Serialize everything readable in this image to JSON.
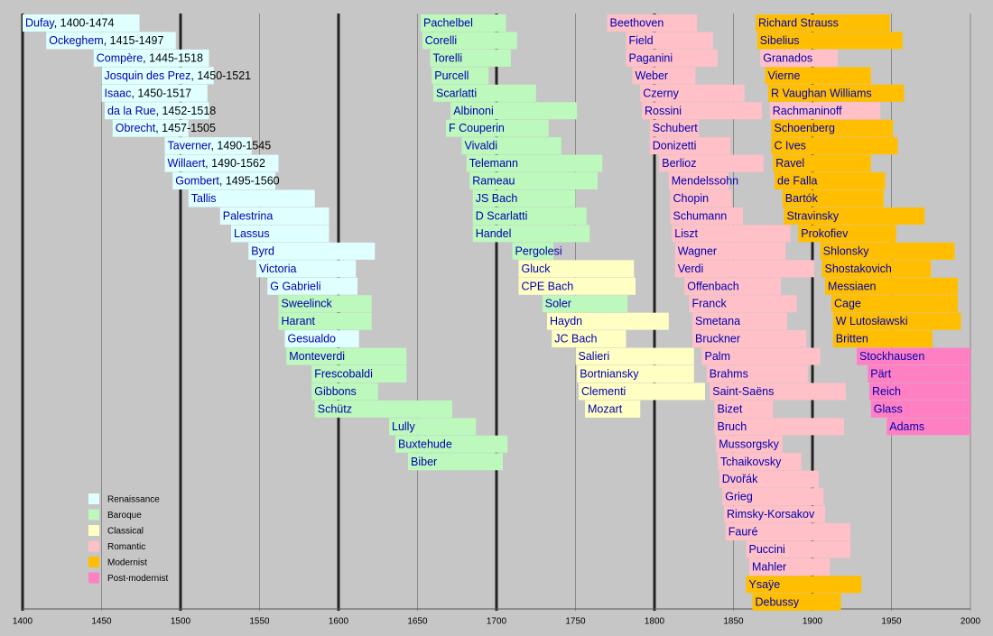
{
  "chart_data": {
    "type": "timeline",
    "xlim": [
      1400,
      2000
    ],
    "xticks": [
      1400,
      1450,
      1500,
      1550,
      1600,
      1650,
      1700,
      1750,
      1800,
      1850,
      1900,
      1950,
      2000
    ],
    "grid": true,
    "legend": "lower-left",
    "series": [
      {
        "name": "Renaissance",
        "color": "#e0ffff"
      },
      {
        "name": "Baroque",
        "color": "#bdf8bd"
      },
      {
        "name": "Classical",
        "color": "#ffffc4"
      },
      {
        "name": "Romantic",
        "color": "#ffc0c8"
      },
      {
        "name": "Modernist",
        "color": "#ffbf00"
      },
      {
        "name": "Post-modernist",
        "color": "#ff7fc4"
      }
    ],
    "bars": [
      [
        {
          "name": "Dufay",
          "dates": ", 1400-1474",
          "start": 1400,
          "end": 1474,
          "era": "Renaissance"
        },
        {
          "name": "Ockeghem",
          "dates": ", 1415-1497",
          "start": 1415,
          "end": 1497,
          "era": "Renaissance"
        },
        {
          "name": "Compère",
          "dates": ", 1445-1518",
          "start": 1445,
          "end": 1518,
          "era": "Renaissance"
        },
        {
          "name": "Josquin des Prez",
          "dates": ", 1450-1521",
          "start": 1450,
          "end": 1521,
          "era": "Renaissance"
        },
        {
          "name": "Isaac",
          "dates": ", 1450-1517",
          "start": 1450,
          "end": 1517,
          "era": "Renaissance"
        },
        {
          "name": "da la Rue",
          "dates": ", 1452-1518",
          "start": 1452,
          "end": 1518,
          "era": "Renaissance"
        },
        {
          "name": "Obrecht",
          "dates": ", 1457-1505",
          "start": 1457,
          "end": 1505,
          "era": "Renaissance"
        },
        {
          "name": "Taverner",
          "dates": ", 1490-1545",
          "start": 1490,
          "end": 1545,
          "era": "Renaissance"
        },
        {
          "name": "Willaert",
          "dates": ", 1490-1562",
          "start": 1490,
          "end": 1562,
          "era": "Renaissance"
        },
        {
          "name": "Gombert",
          "dates": ", 1495-1560",
          "start": 1495,
          "end": 1560,
          "era": "Renaissance"
        },
        {
          "name": "Tallis",
          "start": 1505,
          "end": 1585,
          "era": "Renaissance"
        },
        {
          "name": "Palestrina",
          "start": 1525,
          "end": 1594,
          "era": "Renaissance"
        },
        {
          "name": "Lassus",
          "start": 1532,
          "end": 1594,
          "era": "Renaissance"
        },
        {
          "name": "Byrd",
          "start": 1543,
          "end": 1623,
          "era": "Renaissance"
        },
        {
          "name": "Victoria",
          "start": 1548,
          "end": 1611,
          "era": "Renaissance"
        },
        {
          "name": "G Gabrieli",
          "start": 1555,
          "end": 1612,
          "era": "Renaissance"
        },
        {
          "name": "Sweelinck",
          "start": 1562,
          "end": 1621,
          "era": "Baroque"
        },
        {
          "name": "Harant",
          "start": 1562,
          "end": 1621,
          "era": "Baroque"
        },
        {
          "name": "Gesualdo",
          "start": 1566,
          "end": 1613,
          "era": "Renaissance"
        },
        {
          "name": "Monteverdi",
          "start": 1567,
          "end": 1643,
          "era": "Baroque"
        },
        {
          "name": "Frescobaldi",
          "start": 1583,
          "end": 1643,
          "era": "Baroque"
        },
        {
          "name": "Gibbons",
          "start": 1583,
          "end": 1625,
          "era": "Baroque"
        },
        {
          "name": "Schütz",
          "start": 1585,
          "end": 1672,
          "era": "Baroque"
        },
        {
          "name": "Lully",
          "start": 1632,
          "end": 1687,
          "era": "Baroque"
        },
        {
          "name": "Buxtehude",
          "start": 1636,
          "end": 1707,
          "era": "Baroque"
        },
        {
          "name": "Biber",
          "start": 1644,
          "end": 1704,
          "era": "Baroque"
        }
      ],
      [
        {
          "name": "Pachelbel",
          "start": 1652,
          "end": 1706,
          "era": "Baroque"
        },
        {
          "name": "Corelli",
          "start": 1653,
          "end": 1713,
          "era": "Baroque"
        },
        {
          "name": "Torelli",
          "start": 1658,
          "end": 1709,
          "era": "Baroque"
        },
        {
          "name": "Purcell",
          "start": 1659,
          "end": 1695,
          "era": "Baroque"
        },
        {
          "name": "Scarlatti",
          "start": 1660,
          "end": 1725,
          "era": "Baroque"
        },
        {
          "name": "Albinoni",
          "start": 1671,
          "end": 1751,
          "era": "Baroque"
        },
        {
          "name": "F Couperin",
          "start": 1668,
          "end": 1733,
          "era": "Baroque"
        },
        {
          "name": "Vivaldi",
          "start": 1678,
          "end": 1741,
          "era": "Baroque"
        },
        {
          "name": "Telemann",
          "start": 1681,
          "end": 1767,
          "era": "Baroque"
        },
        {
          "name": "Rameau",
          "start": 1683,
          "end": 1764,
          "era": "Baroque"
        },
        {
          "name": "JS Bach",
          "start": 1685,
          "end": 1750,
          "era": "Baroque"
        },
        {
          "name": "D Scarlatti",
          "start": 1685,
          "end": 1757,
          "era": "Baroque"
        },
        {
          "name": "Handel",
          "start": 1685,
          "end": 1759,
          "era": "Baroque"
        },
        {
          "name": "Pergolesi",
          "start": 1710,
          "end": 1736,
          "era": "Baroque"
        },
        {
          "name": "Gluck",
          "start": 1714,
          "end": 1787,
          "era": "Classical"
        },
        {
          "name": "CPE Bach",
          "start": 1714,
          "end": 1788,
          "era": "Classical"
        },
        {
          "name": "Soler",
          "start": 1729,
          "end": 1783,
          "era": "Baroque"
        },
        {
          "name": "Haydn",
          "start": 1732,
          "end": 1809,
          "era": "Classical"
        },
        {
          "name": "JC Bach",
          "start": 1735,
          "end": 1782,
          "era": "Classical"
        },
        {
          "name": "Salieri",
          "start": 1750,
          "end": 1825,
          "era": "Classical"
        },
        {
          "name": "Bortniansky",
          "start": 1751,
          "end": 1825,
          "era": "Classical"
        },
        {
          "name": "Clementi",
          "start": 1752,
          "end": 1832,
          "era": "Classical"
        },
        {
          "name": "Mozart",
          "start": 1756,
          "end": 1791,
          "era": "Classical"
        }
      ],
      [
        {
          "name": "Beethoven",
          "start": 1770,
          "end": 1827,
          "era": "Romantic"
        },
        {
          "name": "Field",
          "start": 1782,
          "end": 1837,
          "era": "Romantic"
        },
        {
          "name": "Paganini",
          "start": 1782,
          "end": 1840,
          "era": "Romantic"
        },
        {
          "name": "Weber",
          "start": 1786,
          "end": 1826,
          "era": "Romantic"
        },
        {
          "name": "Czerny",
          "start": 1791,
          "end": 1857,
          "era": "Romantic"
        },
        {
          "name": "Rossini",
          "start": 1792,
          "end": 1868,
          "era": "Romantic"
        },
        {
          "name": "Schubert",
          "start": 1797,
          "end": 1828,
          "era": "Romantic"
        },
        {
          "name": "Donizetti",
          "start": 1797,
          "end": 1848,
          "era": "Romantic"
        },
        {
          "name": "Berlioz",
          "start": 1803,
          "end": 1869,
          "era": "Romantic"
        },
        {
          "name": "Mendelssohn",
          "start": 1809,
          "end": 1847,
          "era": "Romantic"
        },
        {
          "name": "Chopin",
          "start": 1810,
          "end": 1849,
          "era": "Romantic"
        },
        {
          "name": "Schumann",
          "start": 1810,
          "end": 1856,
          "era": "Romantic"
        },
        {
          "name": "Liszt",
          "start": 1811,
          "end": 1886,
          "era": "Romantic"
        },
        {
          "name": "Wagner",
          "start": 1813,
          "end": 1883,
          "era": "Romantic"
        },
        {
          "name": "Verdi",
          "start": 1813,
          "end": 1901,
          "era": "Romantic"
        },
        {
          "name": "Offenbach",
          "start": 1819,
          "end": 1880,
          "era": "Romantic"
        },
        {
          "name": "Franck",
          "start": 1822,
          "end": 1890,
          "era": "Romantic"
        },
        {
          "name": "Smetana",
          "start": 1824,
          "end": 1884,
          "era": "Romantic"
        },
        {
          "name": "Bruckner",
          "start": 1824,
          "end": 1896,
          "era": "Romantic"
        },
        {
          "name": "Palm",
          "start": 1830,
          "end": 1905,
          "era": "Romantic"
        },
        {
          "name": "Brahms",
          "start": 1833,
          "end": 1897,
          "era": "Romantic"
        },
        {
          "name": "Saint-Saëns",
          "start": 1835,
          "end": 1921,
          "era": "Romantic"
        },
        {
          "name": "Bizet",
          "start": 1838,
          "end": 1875,
          "era": "Romantic"
        },
        {
          "name": "Bruch",
          "start": 1838,
          "end": 1920,
          "era": "Romantic"
        },
        {
          "name": "Mussorgsky",
          "start": 1839,
          "end": 1881,
          "era": "Romantic"
        },
        {
          "name": "Tchaikovsky",
          "start": 1840,
          "end": 1893,
          "era": "Romantic"
        },
        {
          "name": "Dvořák",
          "start": 1841,
          "end": 1904,
          "era": "Romantic"
        },
        {
          "name": "Grieg",
          "start": 1843,
          "end": 1907,
          "era": "Romantic"
        },
        {
          "name": "Rimsky-Korsakov",
          "start": 1844,
          "end": 1908,
          "era": "Romantic"
        },
        {
          "name": "Fauré",
          "start": 1845,
          "end": 1924,
          "era": "Romantic"
        },
        {
          "name": "Puccini",
          "start": 1858,
          "end": 1924,
          "era": "Romantic"
        },
        {
          "name": "Mahler",
          "start": 1860,
          "end": 1911,
          "era": "Romantic"
        },
        {
          "name": "Ysaÿe",
          "start": 1858,
          "end": 1931,
          "era": "Modernist"
        },
        {
          "name": "Debussy",
          "start": 1862,
          "end": 1918,
          "era": "Modernist"
        }
      ],
      [
        {
          "name": "Richard Strauss",
          "start": 1864,
          "end": 1949,
          "era": "Modernist"
        },
        {
          "name": "Sibelius",
          "start": 1865,
          "end": 1957,
          "era": "Modernist"
        },
        {
          "name": "Granados",
          "start": 1867,
          "end": 1916,
          "era": "Romantic"
        },
        {
          "name": "Vierne",
          "start": 1870,
          "end": 1937,
          "era": "Modernist"
        },
        {
          "name": "R Vaughan Williams",
          "start": 1872,
          "end": 1958,
          "era": "Modernist"
        },
        {
          "name": "Rachmaninoff",
          "start": 1873,
          "end": 1943,
          "era": "Romantic"
        },
        {
          "name": "Schoenberg",
          "start": 1874,
          "end": 1951,
          "era": "Modernist"
        },
        {
          "name": "C Ives",
          "start": 1874,
          "end": 1954,
          "era": "Modernist"
        },
        {
          "name": "Ravel",
          "start": 1875,
          "end": 1937,
          "era": "Modernist"
        },
        {
          "name": "de Falla",
          "start": 1876,
          "end": 1946,
          "era": "Modernist"
        },
        {
          "name": "Bartók",
          "start": 1881,
          "end": 1945,
          "era": "Modernist"
        },
        {
          "name": "Stravinsky",
          "start": 1882,
          "end": 1971,
          "era": "Modernist"
        },
        {
          "name": "Prokofiev",
          "start": 1891,
          "end": 1953,
          "era": "Modernist"
        },
        {
          "name": "Shlonsky",
          "start": 1905,
          "end": 1990,
          "era": "Modernist"
        },
        {
          "name": "Shostakovich",
          "start": 1906,
          "end": 1975,
          "era": "Modernist"
        },
        {
          "name": "Messiaen",
          "start": 1908,
          "end": 1992,
          "era": "Modernist"
        },
        {
          "name": "Cage",
          "start": 1912,
          "end": 1992,
          "era": "Modernist"
        },
        {
          "name": "W Lutosławski",
          "start": 1913,
          "end": 1994,
          "era": "Modernist"
        },
        {
          "name": "Britten",
          "start": 1913,
          "end": 1976,
          "era": "Modernist"
        },
        {
          "name": "Stockhausen",
          "start": 1928,
          "end": 2000,
          "era": "Post-modernist"
        },
        {
          "name": "Pärt",
          "start": 1935,
          "end": 2000,
          "era": "Post-modernist"
        },
        {
          "name": "Reich",
          "start": 1936,
          "end": 2000,
          "era": "Post-modernist"
        },
        {
          "name": "Glass",
          "start": 1937,
          "end": 2000,
          "era": "Post-modernist"
        },
        {
          "name": "Adams",
          "start": 1947,
          "end": 2000,
          "era": "Post-modernist"
        }
      ]
    ]
  }
}
